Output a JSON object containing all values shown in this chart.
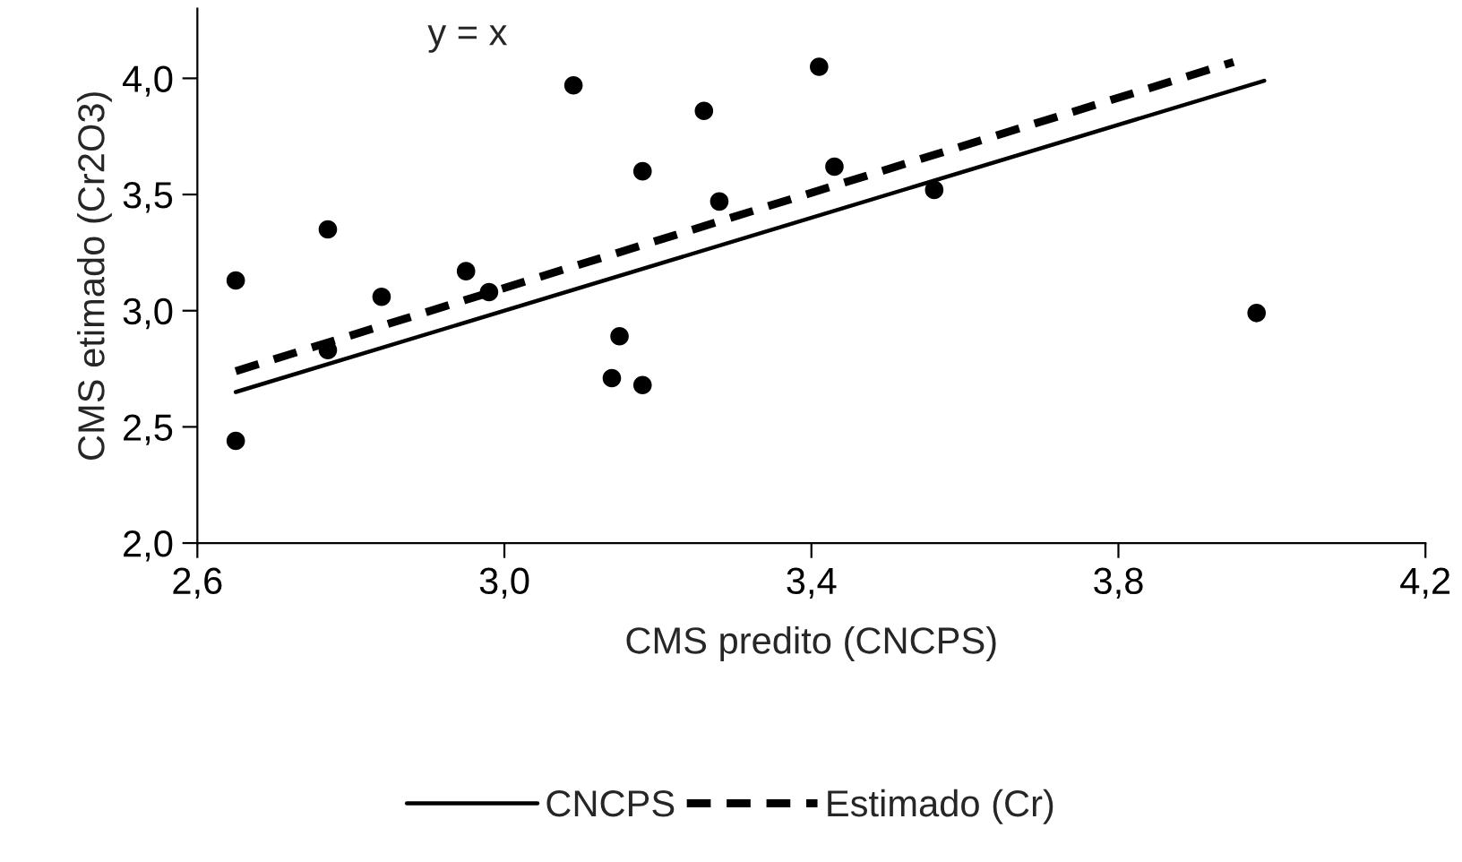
{
  "chart_data": {
    "type": "scatter",
    "xlabel": "CMS predito (CNCPS)",
    "ylabel": "CMS etimado (Cr2O3)",
    "annotations": [
      "y = x"
    ],
    "series": [
      {
        "color": "#000000",
        "marker": "circle",
        "x": [
          2.65,
          2.65,
          2.77,
          2.77,
          2.84,
          2.95,
          2.98,
          3.09,
          3.14,
          3.15,
          3.18,
          3.18,
          3.26,
          3.28,
          3.41,
          3.43,
          3.56,
          3.98
        ],
        "values": [
          3.13,
          2.44,
          3.35,
          2.83,
          3.06,
          3.17,
          3.08,
          3.97,
          2.71,
          2.89,
          3.6,
          2.68,
          3.86,
          3.47,
          4.05,
          3.62,
          3.52,
          2.99
        ]
      },
      {
        "type": "line",
        "name": "CNCPS",
        "color": "#000000",
        "line_style": "solid",
        "x": [
          2.65,
          3.99
        ],
        "values": [
          2.65,
          3.99
        ]
      },
      {
        "type": "line",
        "name": "Estimado (Cr)",
        "color": "#000000",
        "line_style": "dashed",
        "x": [
          2.65,
          3.95
        ],
        "values": [
          2.74,
          4.07
        ]
      }
    ],
    "xlim": [
      2.6,
      4.2
    ],
    "xticks": [
      {
        "value": 2.6,
        "label": "2,6"
      },
      {
        "value": 3.0,
        "label": "3,0"
      },
      {
        "value": 3.4,
        "label": "3,4"
      },
      {
        "value": 3.8,
        "label": "3,8"
      },
      {
        "value": 4.2,
        "label": "4,2"
      }
    ],
    "ylim": [
      2.0,
      4.3
    ],
    "yticks": [
      {
        "value": 2.0,
        "label": "2,0"
      },
      {
        "value": 2.5,
        "label": "2,5"
      },
      {
        "value": 3.0,
        "label": "3,0"
      },
      {
        "value": 3.5,
        "label": "3,5"
      },
      {
        "value": 4.0,
        "label": "4,0"
      }
    ],
    "grid": false,
    "legend": "bottom"
  }
}
